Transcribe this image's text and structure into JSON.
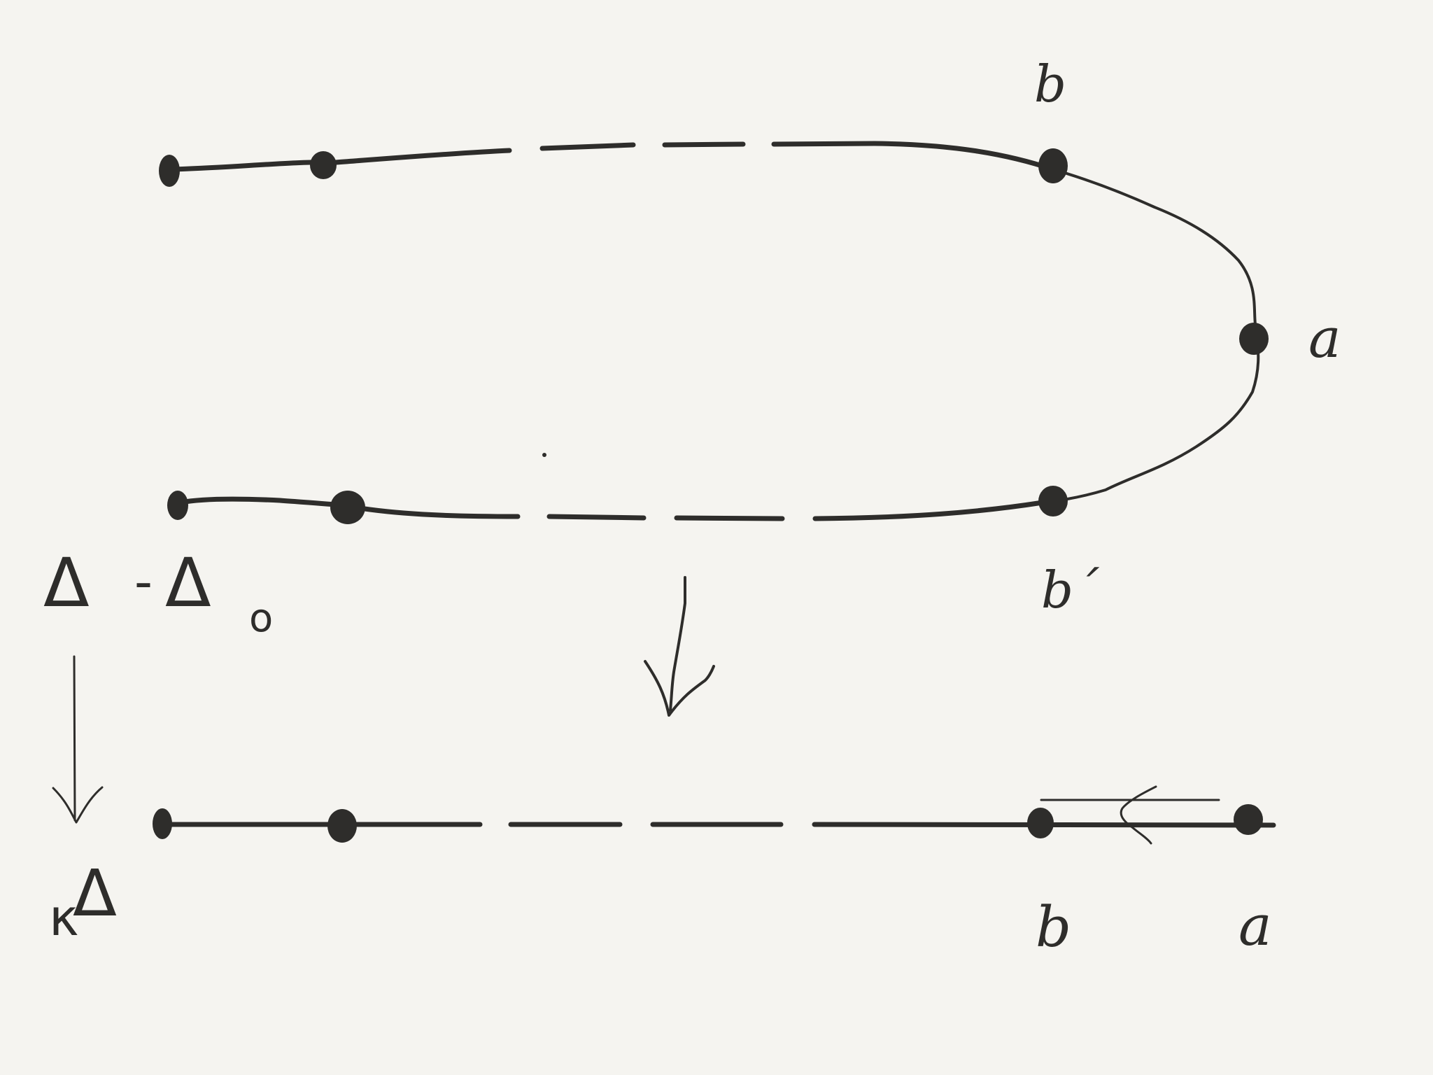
{
  "diagram": {
    "labels": {
      "top_b": "b",
      "top_a": "a",
      "top_b_prime": "b´",
      "bottom_b": "b",
      "bottom_a": "a",
      "domain_delta": "Δ",
      "domain_minus": "-",
      "domain_delta0": "Δ",
      "domain_sub": "o",
      "target_k": "κ",
      "target_delta": "Δ"
    },
    "colors": {
      "ink": "#2e2d2b",
      "paper": "#f5f4f0"
    },
    "icons": {
      "map_arrow": "down-arrow",
      "side_arrow": "down-arrow",
      "fold_arrow": "left-arrow"
    }
  }
}
